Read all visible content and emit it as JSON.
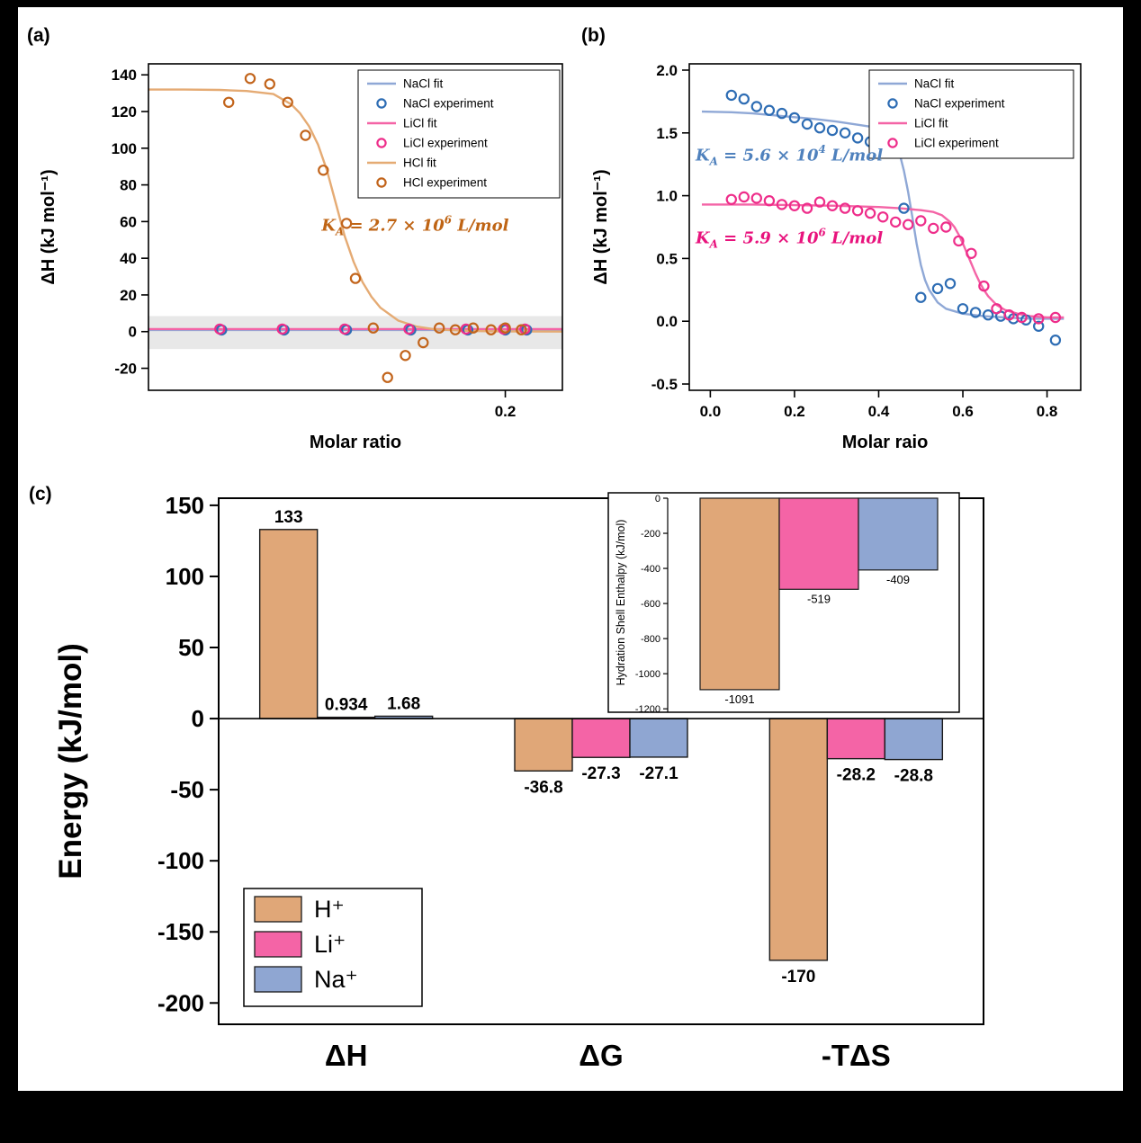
{
  "colors": {
    "background": "#000000",
    "panel": "#ffffff"
  },
  "panels": {
    "a": {
      "label": "(a)"
    },
    "b": {
      "label": "(b)"
    },
    "c": {
      "label": "(c)"
    }
  },
  "chart_data": [
    {
      "id": "a",
      "type": "line",
      "xlabel": "Molar ratio",
      "ylabel": "ΔH (kJ mol⁻¹)",
      "xlim": [
        0,
        0.232
      ],
      "ylim": [
        -32,
        146
      ],
      "yticks": [
        {
          "v": 140,
          "label": "140"
        },
        {
          "v": 120,
          "label": "120"
        },
        {
          "v": 100,
          "label": "100"
        },
        {
          "v": 80,
          "label": "80"
        },
        {
          "v": 60,
          "label": "60"
        },
        {
          "v": 40,
          "label": "40"
        },
        {
          "v": 20,
          "label": "20"
        },
        {
          "v": 0,
          "label": "0"
        },
        {
          "v": -20,
          "label": "-20"
        }
      ],
      "xticks": [
        {
          "v": 0.2,
          "label": "0.2"
        }
      ],
      "band": {
        "y0": -9.5,
        "y1": 8.5,
        "color": "#e8e8e8"
      },
      "fits": [
        {
          "name": "NaCl fit",
          "color": "#8fa8d6",
          "points": [
            [
              0,
              0.9
            ],
            [
              0.232,
              0.9
            ]
          ]
        },
        {
          "name": "LiCl fit",
          "color": "#f464a6",
          "points": [
            [
              0,
              1.4
            ],
            [
              0.232,
              1.4
            ]
          ]
        },
        {
          "name": "HCl fit",
          "color": "#e5ab74",
          "points": [
            [
              0,
              132
            ],
            [
              0.02,
              132
            ],
            [
              0.04,
              131.8
            ],
            [
              0.055,
              131.2
            ],
            [
              0.07,
              129.5
            ],
            [
              0.08,
              124
            ],
            [
              0.085,
              119
            ],
            [
              0.09,
              112
            ],
            [
              0.095,
              102
            ],
            [
              0.1,
              88
            ],
            [
              0.105,
              70
            ],
            [
              0.11,
              52
            ],
            [
              0.115,
              38
            ],
            [
              0.12,
              27
            ],
            [
              0.125,
              19
            ],
            [
              0.13,
              13
            ],
            [
              0.14,
              6
            ],
            [
              0.15,
              2.8
            ],
            [
              0.16,
              1.3
            ],
            [
              0.18,
              0.3
            ],
            [
              0.2,
              0.1
            ],
            [
              0.232,
              0
            ]
          ]
        }
      ],
      "scatter": [
        {
          "name": "NaCl experiment",
          "color": "#2e6db4",
          "points": [
            [
              0.041,
              0.9
            ],
            [
              0.076,
              0.9
            ],
            [
              0.111,
              0.9
            ],
            [
              0.147,
              0.9
            ],
            [
              0.179,
              0.9
            ],
            [
              0.2,
              0.9
            ],
            [
              0.212,
              0.9
            ]
          ]
        },
        {
          "name": "LiCl experiment",
          "color": "#ee2d8a",
          "points": [
            [
              0.04,
              1.4
            ],
            [
              0.075,
              1.4
            ],
            [
              0.11,
              1.4
            ],
            [
              0.146,
              1.4
            ],
            [
              0.178,
              1.4
            ],
            [
              0.199,
              1.4
            ],
            [
              0.211,
              1.4
            ]
          ]
        },
        {
          "name": "HCl experiment",
          "color": "#c2641b",
          "points": [
            [
              0.045,
              125
            ],
            [
              0.057,
              138
            ],
            [
              0.068,
              135
            ],
            [
              0.078,
              125
            ],
            [
              0.088,
              107
            ],
            [
              0.098,
              88
            ],
            [
              0.111,
              59
            ],
            [
              0.116,
              29
            ],
            [
              0.126,
              2
            ],
            [
              0.134,
              -25
            ],
            [
              0.144,
              -13
            ],
            [
              0.154,
              -6
            ],
            [
              0.163,
              2
            ],
            [
              0.172,
              1
            ],
            [
              0.182,
              2
            ],
            [
              0.192,
              1
            ],
            [
              0.2,
              2
            ],
            [
              0.209,
              1
            ]
          ]
        }
      ],
      "legend": {
        "entries": [
          {
            "label": "NaCl fit",
            "type": "line",
            "color": "#8fa8d6"
          },
          {
            "label": "NaCl experiment",
            "type": "marker",
            "color": "#2e6db4"
          },
          {
            "label": "LiCl fit",
            "type": "line",
            "color": "#f464a6"
          },
          {
            "label": "LiCl experiment",
            "type": "marker",
            "color": "#ee2d8a"
          },
          {
            "label": "HCl fit",
            "type": "line",
            "color": "#e5ab74"
          },
          {
            "label": "HCl experiment",
            "type": "marker",
            "color": "#c2641b"
          }
        ]
      },
      "annotations": [
        {
          "color": "#bf6414",
          "x": 0.097,
          "y": 55,
          "base": "K",
          "sub": "A",
          "mid": " = 2.7 × 10",
          "exp": "6",
          "tail": " L/mol"
        }
      ]
    },
    {
      "id": "b",
      "type": "line",
      "xlabel": "Molar raio",
      "ylabel": "ΔH (kJ mol⁻¹)",
      "xlim": [
        -0.05,
        0.88
      ],
      "ylim": [
        -0.55,
        2.05
      ],
      "yticks": [
        {
          "v": 2.0,
          "label": "2.0"
        },
        {
          "v": 1.5,
          "label": "1.5"
        },
        {
          "v": 1.0,
          "label": "1.0"
        },
        {
          "v": 0.5,
          "label": "0.5"
        },
        {
          "v": 0.0,
          "label": "0.0"
        },
        {
          "v": -0.5,
          "label": "-0.5"
        }
      ],
      "xticks": [
        {
          "v": 0.0,
          "label": "0.0"
        },
        {
          "v": 0.2,
          "label": "0.2"
        },
        {
          "v": 0.4,
          "label": "0.4"
        },
        {
          "v": 0.6,
          "label": "0.6"
        },
        {
          "v": 0.8,
          "label": "0.8"
        }
      ],
      "fits": [
        {
          "name": "NaCl fit",
          "color": "#8fa8d6",
          "points": [
            [
              -0.02,
              1.67
            ],
            [
              0.05,
              1.665
            ],
            [
              0.1,
              1.655
            ],
            [
              0.15,
              1.64
            ],
            [
              0.2,
              1.625
            ],
            [
              0.25,
              1.61
            ],
            [
              0.3,
              1.59
            ],
            [
              0.35,
              1.565
            ],
            [
              0.38,
              1.55
            ],
            [
              0.4,
              1.53
            ],
            [
              0.42,
              1.49
            ],
            [
              0.44,
              1.41
            ],
            [
              0.45,
              1.33
            ],
            [
              0.46,
              1.2
            ],
            [
              0.47,
              1.03
            ],
            [
              0.48,
              0.83
            ],
            [
              0.49,
              0.62
            ],
            [
              0.5,
              0.45
            ],
            [
              0.51,
              0.33
            ],
            [
              0.52,
              0.25
            ],
            [
              0.54,
              0.15
            ],
            [
              0.56,
              0.1
            ],
            [
              0.6,
              0.06
            ],
            [
              0.65,
              0.04
            ],
            [
              0.7,
              0.03
            ],
            [
              0.76,
              0.02
            ],
            [
              0.84,
              0.02
            ]
          ]
        },
        {
          "name": "LiCl fit",
          "color": "#f464a6",
          "points": [
            [
              -0.02,
              0.93
            ],
            [
              0.1,
              0.93
            ],
            [
              0.2,
              0.925
            ],
            [
              0.3,
              0.92
            ],
            [
              0.4,
              0.91
            ],
            [
              0.45,
              0.9
            ],
            [
              0.5,
              0.885
            ],
            [
              0.53,
              0.87
            ],
            [
              0.55,
              0.845
            ],
            [
              0.57,
              0.79
            ],
            [
              0.58,
              0.75
            ],
            [
              0.59,
              0.69
            ],
            [
              0.6,
              0.62
            ],
            [
              0.61,
              0.54
            ],
            [
              0.62,
              0.46
            ],
            [
              0.63,
              0.38
            ],
            [
              0.64,
              0.31
            ],
            [
              0.65,
              0.25
            ],
            [
              0.66,
              0.2
            ],
            [
              0.68,
              0.13
            ],
            [
              0.7,
              0.09
            ],
            [
              0.73,
              0.06
            ],
            [
              0.76,
              0.04
            ],
            [
              0.8,
              0.03
            ],
            [
              0.84,
              0.03
            ]
          ]
        }
      ],
      "scatter": [
        {
          "name": "NaCl experiment",
          "color": "#2e6db4",
          "points": [
            [
              0.05,
              1.8
            ],
            [
              0.08,
              1.77
            ],
            [
              0.11,
              1.71
            ],
            [
              0.14,
              1.68
            ],
            [
              0.17,
              1.655
            ],
            [
              0.2,
              1.62
            ],
            [
              0.23,
              1.57
            ],
            [
              0.26,
              1.54
            ],
            [
              0.29,
              1.52
            ],
            [
              0.32,
              1.5
            ],
            [
              0.35,
              1.46
            ],
            [
              0.38,
              1.43
            ],
            [
              0.46,
              0.9
            ],
            [
              0.5,
              0.19
            ],
            [
              0.54,
              0.26
            ],
            [
              0.57,
              0.3
            ],
            [
              0.6,
              0.1
            ],
            [
              0.63,
              0.07
            ],
            [
              0.66,
              0.05
            ],
            [
              0.69,
              0.04
            ],
            [
              0.72,
              0.02
            ],
            [
              0.75,
              0.01
            ],
            [
              0.78,
              -0.04
            ],
            [
              0.82,
              -0.15
            ]
          ]
        },
        {
          "name": "LiCl experiment",
          "color": "#ee2d8a",
          "points": [
            [
              0.05,
              0.97
            ],
            [
              0.08,
              0.99
            ],
            [
              0.11,
              0.98
            ],
            [
              0.14,
              0.96
            ],
            [
              0.17,
              0.93
            ],
            [
              0.2,
              0.92
            ],
            [
              0.23,
              0.9
            ],
            [
              0.26,
              0.95
            ],
            [
              0.29,
              0.92
            ],
            [
              0.32,
              0.9
            ],
            [
              0.35,
              0.88
            ],
            [
              0.38,
              0.86
            ],
            [
              0.41,
              0.83
            ],
            [
              0.44,
              0.79
            ],
            [
              0.47,
              0.77
            ],
            [
              0.5,
              0.8
            ],
            [
              0.53,
              0.74
            ],
            [
              0.56,
              0.75
            ],
            [
              0.59,
              0.64
            ],
            [
              0.62,
              0.54
            ],
            [
              0.65,
              0.28
            ],
            [
              0.68,
              0.1
            ],
            [
              0.71,
              0.05
            ],
            [
              0.74,
              0.03
            ],
            [
              0.78,
              0.02
            ],
            [
              0.82,
              0.03
            ]
          ]
        }
      ],
      "legend": {
        "entries": [
          {
            "label": "NaCl fit",
            "type": "line",
            "color": "#8fa8d6"
          },
          {
            "label": "NaCl experiment",
            "type": "marker",
            "color": "#2e6db4"
          },
          {
            "label": "LiCl fit",
            "type": "line",
            "color": "#f464a6"
          },
          {
            "label": "LiCl experiment",
            "type": "marker",
            "color": "#ee2d8a"
          }
        ]
      },
      "annotations": [
        {
          "color": "#4f81bd",
          "x": -0.035,
          "y": 1.28,
          "base": "K",
          "sub": "A",
          "mid": " = 5.6 × 10",
          "exp": "4",
          "tail": " L/mol"
        },
        {
          "color": "#e8137d",
          "x": -0.035,
          "y": 0.62,
          "base": "K",
          "sub": "A",
          "mid": " = 5.9 × 10",
          "exp": "6",
          "tail": " L/mol"
        }
      ]
    },
    {
      "id": "c",
      "type": "bar",
      "ylabel": "Energy (kJ/mol)",
      "categories": [
        "ΔH",
        "ΔG",
        "-TΔS"
      ],
      "ylim": [
        -215,
        155
      ],
      "yticks": [
        150,
        100,
        50,
        0,
        -50,
        -100,
        -150,
        -200
      ],
      "series": [
        {
          "name": "H⁺",
          "color": "#e0a778",
          "values": [
            133,
            -36.8,
            -170
          ],
          "labels": [
            "133",
            "-36.8",
            "-170"
          ]
        },
        {
          "name": "Li⁺",
          "color": "#f464a6",
          "values": [
            0.934,
            -27.3,
            -28.2
          ],
          "labels": [
            "0.934",
            "-27.3",
            "-28.2"
          ]
        },
        {
          "name": "Na⁺",
          "color": "#8fa6d2",
          "values": [
            1.68,
            -27.1,
            -28.8
          ],
          "labels": [
            "1.68",
            "-27.1",
            "-28.8"
          ]
        }
      ],
      "inset": {
        "ylabel": "Hydration Shell Enthalpy (kJ/mol)",
        "ylim": [
          -1240,
          0
        ],
        "yticks": [
          0,
          -200,
          -400,
          -600,
          -800,
          -1000,
          -1200
        ],
        "values": [
          -1091,
          -519,
          -409
        ],
        "labels": [
          "-1091",
          "-519",
          "-409"
        ],
        "colors": [
          "#e0a778",
          "#f464a6",
          "#8fa6d2"
        ]
      }
    }
  ]
}
